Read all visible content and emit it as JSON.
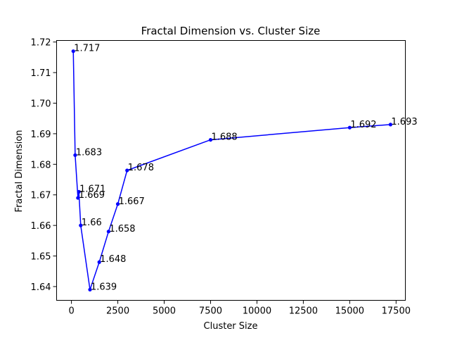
{
  "chart_data": {
    "type": "line",
    "title": "Fractal Dimension vs. Cluster Size",
    "xlabel": "Cluster Size",
    "ylabel": "Fractal Dimension",
    "xlim": [
      -800,
      18000
    ],
    "ylim": [
      1.6355,
      1.7205
    ],
    "xticks": [
      0,
      2500,
      5000,
      7500,
      10000,
      12500,
      15000,
      17500
    ],
    "xtick_labels": [
      "0",
      "2500",
      "5000",
      "7500",
      "10000",
      "12500",
      "15000",
      "17500"
    ],
    "yticks": [
      1.64,
      1.65,
      1.66,
      1.67,
      1.68,
      1.69,
      1.7,
      1.71,
      1.72
    ],
    "ytick_labels": [
      "1.64",
      "1.65",
      "1.66",
      "1.67",
      "1.68",
      "1.69",
      "1.70",
      "1.71",
      "1.72"
    ],
    "grid": false,
    "series": [
      {
        "color": "#0000ff",
        "points": [
          {
            "x": 100,
            "y": 1.717,
            "label": "1.717"
          },
          {
            "x": 200,
            "y": 1.683,
            "label": "1.683"
          },
          {
            "x": 350,
            "y": 1.669,
            "label": "1.669"
          },
          {
            "x": 400,
            "y": 1.671,
            "label": "1.671"
          },
          {
            "x": 500,
            "y": 1.66,
            "label": "1.66"
          },
          {
            "x": 1000,
            "y": 1.639,
            "label": "1.639"
          },
          {
            "x": 1500,
            "y": 1.648,
            "label": "1.648"
          },
          {
            "x": 2000,
            "y": 1.658,
            "label": "1.658"
          },
          {
            "x": 2500,
            "y": 1.667,
            "label": "1.667"
          },
          {
            "x": 3000,
            "y": 1.678,
            "label": "1.678"
          },
          {
            "x": 7500,
            "y": 1.688,
            "label": "1.688"
          },
          {
            "x": 15000,
            "y": 1.692,
            "label": "1.692"
          },
          {
            "x": 17200,
            "y": 1.693,
            "label": "1.693"
          }
        ]
      }
    ]
  }
}
